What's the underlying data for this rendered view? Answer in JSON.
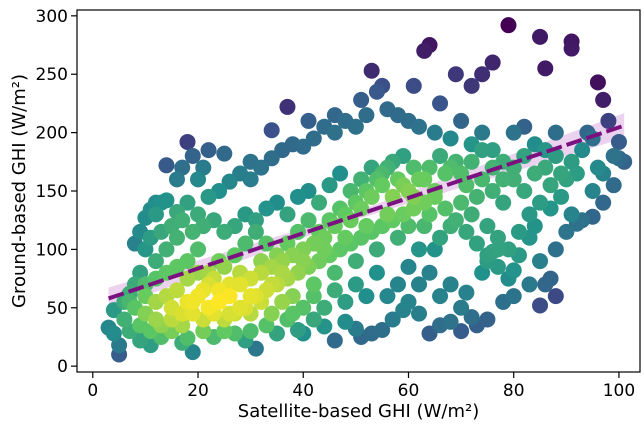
{
  "chart_data": {
    "type": "scatter",
    "title": "",
    "xlabel": "Satellite-based GHI (W/m²)",
    "ylabel": "Ground-based GHI (W/m²)",
    "xlim": [
      -3,
      104
    ],
    "ylim": [
      -5,
      305
    ],
    "xticks": [
      0,
      20,
      40,
      60,
      80,
      100
    ],
    "yticks": [
      0,
      50,
      100,
      150,
      200,
      250,
      300
    ],
    "grid": false,
    "legend": "none",
    "colormap": "viridis",
    "colormap_stops": [
      "#440154",
      "#3b528b",
      "#21918c",
      "#5ec962",
      "#fde725"
    ],
    "point_color_encodes": "point density",
    "regression_line": {
      "x": [
        3,
        101
      ],
      "y": [
        58,
        206
      ],
      "color": "#7b117f",
      "style": "dashed",
      "confidence_band_color": "#e4c4ea"
    },
    "points": [
      [
        5,
        18
      ],
      [
        5,
        10
      ],
      [
        3,
        33
      ],
      [
        4,
        28
      ],
      [
        6,
        40
      ],
      [
        4,
        48
      ],
      [
        7,
        55
      ],
      [
        8,
        70
      ],
      [
        7,
        62
      ],
      [
        9,
        80
      ],
      [
        9,
        115
      ],
      [
        10,
        127
      ],
      [
        11,
        134
      ],
      [
        12,
        140
      ],
      [
        13,
        140
      ],
      [
        14,
        172
      ],
      [
        12,
        40
      ],
      [
        10,
        45
      ],
      [
        15,
        30
      ],
      [
        17,
        20
      ],
      [
        19,
        12
      ],
      [
        18,
        24
      ],
      [
        21,
        30
      ],
      [
        23,
        25
      ],
      [
        25,
        30
      ],
      [
        27,
        28
      ],
      [
        29,
        22
      ],
      [
        31,
        15
      ],
      [
        30,
        30
      ],
      [
        33,
        35
      ],
      [
        35,
        28
      ],
      [
        37,
        40
      ],
      [
        39,
        31
      ],
      [
        40,
        28
      ],
      [
        42,
        40
      ],
      [
        44,
        34
      ],
      [
        46,
        22
      ],
      [
        48,
        38
      ],
      [
        50,
        32
      ],
      [
        51,
        25
      ],
      [
        53,
        28
      ],
      [
        55,
        31
      ],
      [
        57,
        40
      ],
      [
        59,
        48
      ],
      [
        60,
        55
      ],
      [
        62,
        45
      ],
      [
        64,
        28
      ],
      [
        66,
        35
      ],
      [
        68,
        38
      ],
      [
        70,
        50
      ],
      [
        71,
        63
      ],
      [
        72,
        42
      ],
      [
        74,
        80
      ],
      [
        75,
        90
      ],
      [
        76,
        98
      ],
      [
        77,
        100
      ],
      [
        80,
        82
      ],
      [
        85,
        52
      ],
      [
        88,
        100
      ],
      [
        90,
        115
      ],
      [
        91,
        130
      ],
      [
        92,
        122
      ],
      [
        93,
        125
      ],
      [
        95,
        128
      ],
      [
        99,
        180
      ],
      [
        100,
        178
      ],
      [
        98,
        210
      ],
      [
        97,
        228
      ],
      [
        96,
        243
      ],
      [
        91,
        278
      ],
      [
        91,
        272
      ],
      [
        85,
        282
      ],
      [
        86,
        255
      ],
      [
        79,
        292
      ],
      [
        76,
        260
      ],
      [
        74,
        250
      ],
      [
        72,
        240
      ],
      [
        69,
        250
      ],
      [
        66,
        225
      ],
      [
        64,
        275
      ],
      [
        63,
        270
      ],
      [
        61,
        240
      ],
      [
        58,
        215
      ],
      [
        55,
        240
      ],
      [
        54,
        235
      ],
      [
        53,
        253
      ],
      [
        51,
        228
      ],
      [
        46,
        215
      ],
      [
        41,
        210
      ],
      [
        37,
        222
      ],
      [
        34,
        202
      ],
      [
        30,
        175
      ],
      [
        25,
        182
      ],
      [
        22,
        185
      ],
      [
        19,
        180
      ],
      [
        20,
        160
      ],
      [
        21,
        170
      ],
      [
        18,
        192
      ],
      [
        17,
        170
      ],
      [
        16,
        160
      ],
      [
        14,
        142
      ],
      [
        12,
        130
      ],
      [
        16,
        132
      ],
      [
        18,
        140
      ],
      [
        20,
        130
      ],
      [
        22,
        145
      ],
      [
        24,
        150
      ],
      [
        26,
        158
      ],
      [
        28,
        165
      ],
      [
        30,
        160
      ],
      [
        32,
        170
      ],
      [
        34,
        178
      ],
      [
        36,
        185
      ],
      [
        38,
        190
      ],
      [
        40,
        188
      ],
      [
        42,
        195
      ],
      [
        44,
        205
      ],
      [
        46,
        200
      ],
      [
        48,
        210
      ],
      [
        50,
        205
      ],
      [
        52,
        215
      ],
      [
        56,
        220
      ],
      [
        60,
        210
      ],
      [
        62,
        205
      ],
      [
        65,
        200
      ],
      [
        68,
        195
      ],
      [
        70,
        210
      ],
      [
        72,
        190
      ],
      [
        74,
        200
      ],
      [
        76,
        185
      ],
      [
        78,
        175
      ],
      [
        80,
        200
      ],
      [
        82,
        205
      ],
      [
        84,
        190
      ],
      [
        86,
        170
      ],
      [
        88,
        180
      ],
      [
        90,
        160
      ],
      [
        92,
        165
      ],
      [
        95,
        150
      ],
      [
        97,
        140
      ],
      [
        94,
        200
      ],
      [
        96,
        170
      ],
      [
        89,
        145
      ],
      [
        87,
        135
      ],
      [
        84,
        120
      ],
      [
        82,
        150
      ],
      [
        80,
        160
      ],
      [
        78,
        140
      ],
      [
        76,
        150
      ],
      [
        74,
        160
      ],
      [
        72,
        130
      ],
      [
        70,
        140
      ],
      [
        68,
        120
      ],
      [
        66,
        110
      ],
      [
        64,
        130
      ],
      [
        62,
        100
      ],
      [
        60,
        120
      ],
      [
        58,
        110
      ],
      [
        56,
        130
      ],
      [
        54,
        100
      ],
      [
        52,
        120
      ],
      [
        50,
        90
      ],
      [
        48,
        110
      ],
      [
        46,
        80
      ],
      [
        44,
        100
      ],
      [
        42,
        70
      ],
      [
        40,
        90
      ],
      [
        38,
        60
      ],
      [
        36,
        80
      ],
      [
        34,
        70
      ],
      [
        32,
        90
      ],
      [
        30,
        60
      ],
      [
        28,
        80
      ],
      [
        26,
        70
      ],
      [
        24,
        90
      ],
      [
        22,
        80
      ],
      [
        20,
        100
      ],
      [
        18,
        90
      ],
      [
        16,
        110
      ],
      [
        14,
        100
      ],
      [
        12,
        90
      ],
      [
        10,
        100
      ],
      [
        8,
        105
      ],
      [
        11,
        110
      ],
      [
        13,
        115
      ],
      [
        15,
        120
      ],
      [
        17,
        125
      ],
      [
        19,
        115
      ],
      [
        21,
        120
      ],
      [
        23,
        125
      ],
      [
        25,
        115
      ],
      [
        27,
        120
      ],
      [
        29,
        130
      ],
      [
        31,
        125
      ],
      [
        33,
        135
      ],
      [
        35,
        140
      ],
      [
        37,
        130
      ],
      [
        39,
        145
      ],
      [
        41,
        150
      ],
      [
        43,
        140
      ],
      [
        45,
        155
      ],
      [
        47,
        165
      ],
      [
        49,
        150
      ],
      [
        51,
        160
      ],
      [
        53,
        170
      ],
      [
        55,
        165
      ],
      [
        57,
        175
      ],
      [
        59,
        180
      ],
      [
        61,
        170
      ],
      [
        63,
        160
      ],
      [
        65,
        150
      ],
      [
        67,
        165
      ],
      [
        69,
        175
      ],
      [
        71,
        155
      ],
      [
        73,
        145
      ],
      [
        75,
        120
      ],
      [
        77,
        110
      ],
      [
        79,
        100
      ],
      [
        81,
        95
      ],
      [
        83,
        110
      ],
      [
        85,
        90
      ],
      [
        87,
        75
      ],
      [
        88,
        60
      ],
      [
        86,
        70
      ],
      [
        83,
        70
      ],
      [
        80,
        60
      ],
      [
        78,
        55
      ],
      [
        75,
        40
      ],
      [
        73,
        35
      ],
      [
        70,
        30
      ],
      [
        68,
        70
      ],
      [
        66,
        60
      ],
      [
        64,
        80
      ],
      [
        62,
        70
      ],
      [
        60,
        85
      ],
      [
        58,
        70
      ],
      [
        56,
        60
      ],
      [
        54,
        80
      ],
      [
        52,
        60
      ],
      [
        50,
        70
      ],
      [
        48,
        55
      ],
      [
        46,
        65
      ],
      [
        44,
        50
      ],
      [
        42,
        60
      ],
      [
        40,
        50
      ],
      [
        38,
        45
      ],
      [
        36,
        55
      ],
      [
        34,
        45
      ],
      [
        32,
        55
      ],
      [
        30,
        45
      ],
      [
        28,
        50
      ],
      [
        26,
        45
      ],
      [
        24,
        55
      ],
      [
        22,
        50
      ],
      [
        20,
        60
      ],
      [
        18,
        55
      ],
      [
        16,
        65
      ],
      [
        14,
        60
      ],
      [
        12,
        55
      ],
      [
        10,
        60
      ],
      [
        8,
        50
      ],
      [
        6,
        55
      ],
      [
        9,
        35
      ],
      [
        11,
        30
      ],
      [
        13,
        25
      ],
      [
        15,
        40
      ],
      [
        17,
        35
      ],
      [
        19,
        45
      ],
      [
        21,
        40
      ],
      [
        23,
        45
      ],
      [
        25,
        40
      ],
      [
        27,
        45
      ],
      [
        29,
        50
      ],
      [
        31,
        60
      ],
      [
        33,
        65
      ],
      [
        35,
        70
      ],
      [
        37,
        75
      ],
      [
        39,
        80
      ],
      [
        41,
        85
      ],
      [
        43,
        90
      ],
      [
        45,
        95
      ],
      [
        47,
        100
      ],
      [
        49,
        105
      ],
      [
        51,
        110
      ],
      [
        53,
        115
      ],
      [
        55,
        120
      ],
      [
        57,
        125
      ],
      [
        59,
        130
      ],
      [
        61,
        135
      ],
      [
        63,
        140
      ],
      [
        65,
        145
      ],
      [
        67,
        135
      ],
      [
        69,
        125
      ],
      [
        71,
        115
      ],
      [
        73,
        105
      ],
      [
        75,
        95
      ],
      [
        77,
        85
      ],
      [
        79,
        75
      ],
      [
        81,
        115
      ],
      [
        83,
        130
      ],
      [
        85,
        140
      ],
      [
        87,
        155
      ],
      [
        89,
        165
      ],
      [
        91,
        175
      ],
      [
        93,
        185
      ],
      [
        95,
        195
      ],
      [
        97,
        165
      ],
      [
        99,
        155
      ],
      [
        101,
        175
      ],
      [
        100,
        192
      ],
      [
        7,
        30
      ],
      [
        9,
        22
      ],
      [
        11,
        18
      ],
      [
        13,
        35
      ],
      [
        15,
        50
      ],
      [
        17,
        45
      ],
      [
        19,
        55
      ],
      [
        21,
        65
      ],
      [
        23,
        75
      ],
      [
        25,
        85
      ],
      [
        27,
        95
      ],
      [
        29,
        105
      ],
      [
        31,
        115
      ],
      [
        33,
        105
      ],
      [
        35,
        95
      ],
      [
        37,
        105
      ],
      [
        39,
        115
      ],
      [
        41,
        125
      ],
      [
        43,
        115
      ],
      [
        45,
        125
      ],
      [
        47,
        135
      ],
      [
        49,
        125
      ],
      [
        51,
        135
      ],
      [
        53,
        145
      ],
      [
        55,
        155
      ],
      [
        57,
        145
      ],
      [
        59,
        155
      ],
      [
        61,
        145
      ],
      [
        63,
        120
      ],
      [
        65,
        100
      ],
      [
        10,
        70
      ],
      [
        12,
        75
      ],
      [
        14,
        80
      ],
      [
        16,
        85
      ],
      [
        18,
        75
      ],
      [
        20,
        80
      ],
      [
        22,
        70
      ],
      [
        24,
        65
      ],
      [
        26,
        60
      ],
      [
        28,
        70
      ],
      [
        30,
        75
      ],
      [
        32,
        80
      ],
      [
        34,
        85
      ],
      [
        36,
        90
      ],
      [
        38,
        95
      ],
      [
        40,
        100
      ],
      [
        42,
        105
      ],
      [
        44,
        110
      ],
      [
        46,
        120
      ],
      [
        48,
        130
      ],
      [
        50,
        140
      ],
      [
        52,
        150
      ],
      [
        54,
        160
      ],
      [
        56,
        170
      ],
      [
        58,
        160
      ],
      [
        60,
        150
      ],
      [
        62,
        160
      ],
      [
        64,
        170
      ],
      [
        66,
        180
      ],
      [
        68,
        170
      ],
      [
        70,
        165
      ],
      [
        72,
        175
      ],
      [
        74,
        185
      ],
      [
        76,
        170
      ],
      [
        78,
        160
      ],
      [
        80,
        170
      ],
      [
        82,
        180
      ],
      [
        84,
        165
      ],
      [
        86,
        185
      ],
      [
        88,
        200
      ]
    ]
  }
}
